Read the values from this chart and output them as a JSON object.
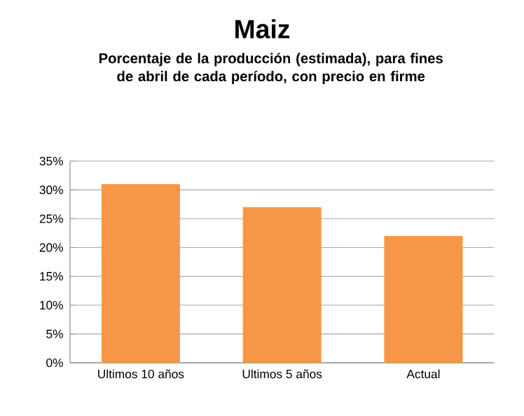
{
  "chart_data": {
    "type": "bar",
    "title": "Maiz",
    "subtitle": "Porcentaje de la producción (estimada),  para fines de abril de cada período, con precio en firme",
    "categories": [
      "Ultimos 10 años",
      "Ultimos 5 años",
      "Actual"
    ],
    "values": [
      31,
      27,
      22
    ],
    "color": "#f79646",
    "ylim": [
      0,
      35
    ],
    "yticks": [
      {
        "value": 0,
        "label": "0%"
      },
      {
        "value": 5,
        "label": "5%"
      },
      {
        "value": 10,
        "label": "10%"
      },
      {
        "value": 15,
        "label": "15%"
      },
      {
        "value": 20,
        "label": "20%"
      },
      {
        "value": 25,
        "label": "25%"
      },
      {
        "value": 30,
        "label": "30%"
      },
      {
        "value": 35,
        "label": "35%"
      }
    ],
    "grid": "y"
  }
}
